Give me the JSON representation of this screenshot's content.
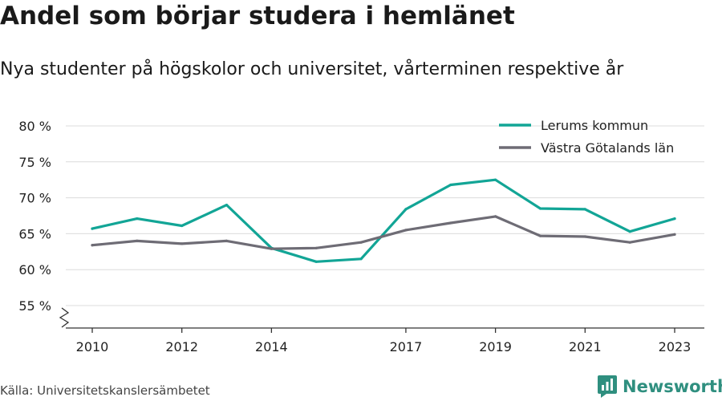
{
  "header": {
    "title": "Andel som börjar studera i hemlänet",
    "subtitle": "Nya studenter på högskolor och universitet, vårterminen respektive år"
  },
  "footer": {
    "source": "Källa: Universitetskanslersämbetet",
    "brand": "Newsworthy",
    "brand_color": "#2f8f7f"
  },
  "chart_data": {
    "type": "line",
    "x": [
      2010,
      2011,
      2012,
      2013,
      2014,
      2015,
      2016,
      2017,
      2018,
      2019,
      2020,
      2021,
      2022,
      2023
    ],
    "x_tick_labels": [
      "2010",
      "2012",
      "2014",
      "2017",
      "2019",
      "2021",
      "2023"
    ],
    "y_tick_labels": [
      "55 %",
      "60 %",
      "65 %",
      "70 %",
      "75 %",
      "80 %"
    ],
    "ylim": [
      55,
      80
    ],
    "y_axis_break": true,
    "grid": true,
    "legend_position": "top-right",
    "series": [
      {
        "name": "Lerums kommun",
        "color": "#12a596",
        "values": [
          65.7,
          67.1,
          66.1,
          69.0,
          63.0,
          61.1,
          61.5,
          68.4,
          71.8,
          72.5,
          68.5,
          68.4,
          65.3,
          67.1
        ]
      },
      {
        "name": "Västra Götalands län",
        "color": "#6e6c75",
        "values": [
          63.4,
          64.0,
          63.6,
          64.0,
          62.9,
          63.0,
          63.8,
          65.5,
          66.5,
          67.4,
          64.7,
          64.6,
          63.8,
          64.9
        ]
      }
    ]
  }
}
